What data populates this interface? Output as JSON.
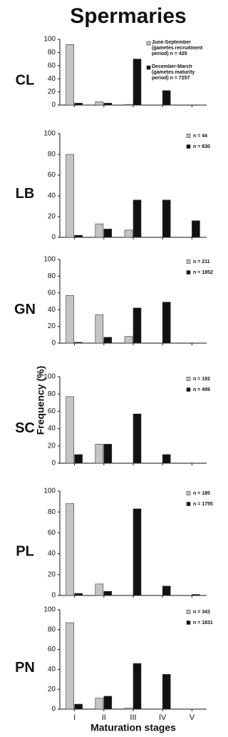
{
  "title": "Spermaries",
  "x_label": "Maturation stages",
  "y_label": "Frequency (%)",
  "chart_data": [
    {
      "type": "bar",
      "panel_label": "CL",
      "ylim": [
        0,
        100
      ],
      "yticks": [
        0,
        20,
        40,
        60,
        80,
        100
      ],
      "series": [
        {
          "name": "June-September (gametes recruitment period) n = 425",
          "color": "#c4c4c4",
          "values": [
            92,
            5,
            1,
            0,
            0
          ]
        },
        {
          "name": "December-March (gametes maturity period) n = 7257",
          "color": "#111111",
          "values": [
            3,
            3,
            70,
            22,
            0
          ]
        }
      ]
    },
    {
      "type": "bar",
      "panel_label": "LB",
      "ylim": [
        0,
        100
      ],
      "yticks": [
        0,
        20,
        40,
        60,
        80,
        100
      ],
      "series": [
        {
          "name": "n = 44",
          "color": "#c4c4c4",
          "values": [
            80,
            13,
            7,
            0,
            0
          ]
        },
        {
          "name": "n = 830",
          "color": "#111111",
          "values": [
            2,
            8,
            36,
            36,
            16
          ]
        }
      ]
    },
    {
      "type": "bar",
      "panel_label": "GN",
      "ylim": [
        0,
        100
      ],
      "yticks": [
        0,
        20,
        40,
        60,
        80,
        100
      ],
      "series": [
        {
          "name": "n = 211",
          "color": "#c4c4c4",
          "values": [
            57,
            34,
            8,
            0,
            0
          ]
        },
        {
          "name": "n = 1852",
          "color": "#111111",
          "values": [
            1,
            7,
            42,
            49,
            0
          ]
        }
      ]
    },
    {
      "type": "bar",
      "panel_label": "SC",
      "ylim": [
        0,
        100
      ],
      "yticks": [
        0,
        20,
        40,
        60,
        80,
        100
      ],
      "series": [
        {
          "name": "n = 192",
          "color": "#c4c4c4",
          "values": [
            77,
            22,
            0,
            0,
            0
          ]
        },
        {
          "name": "n = 499",
          "color": "#111111",
          "values": [
            10,
            22,
            57,
            10,
            0
          ]
        }
      ]
    },
    {
      "type": "bar",
      "panel_label": "PL",
      "ylim": [
        0,
        100
      ],
      "yticks": [
        0,
        20,
        40,
        60,
        80,
        100
      ],
      "series": [
        {
          "name": "n = 185",
          "color": "#c4c4c4",
          "values": [
            88,
            11,
            0,
            0,
            0
          ]
        },
        {
          "name": "n = 1755",
          "color": "#111111",
          "values": [
            2,
            4,
            83,
            9,
            1
          ]
        }
      ]
    },
    {
      "type": "bar",
      "panel_label": "PN",
      "ylim": [
        0,
        100
      ],
      "yticks": [
        0,
        20,
        40,
        60,
        80,
        100
      ],
      "categories": [
        "I",
        "II",
        "III",
        "IV",
        "V"
      ],
      "series": [
        {
          "name": "n = 343",
          "color": "#c4c4c4",
          "values": [
            87,
            11,
            1,
            0,
            0
          ]
        },
        {
          "name": "n = 1831",
          "color": "#111111",
          "values": [
            5,
            13,
            46,
            35,
            0
          ]
        }
      ]
    }
  ]
}
